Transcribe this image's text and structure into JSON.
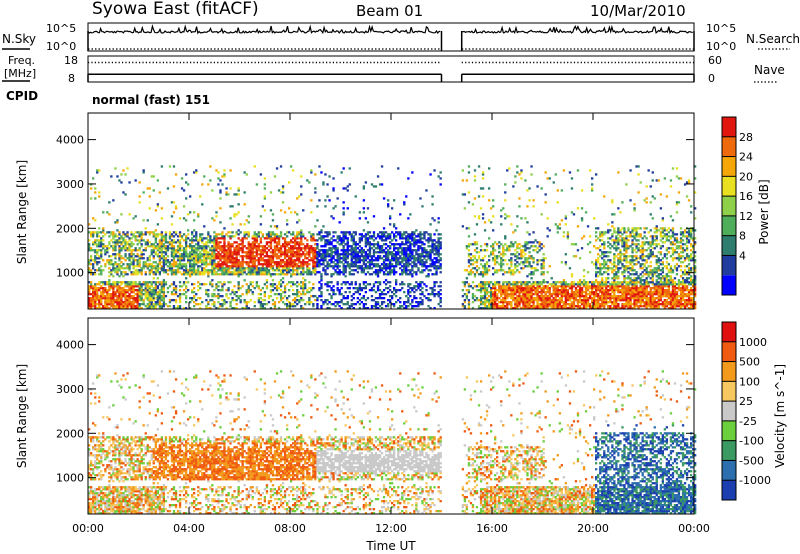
{
  "header": {
    "title": "Syowa East (fitACF)",
    "beam": "Beam 01",
    "date": "10/Mar/2010"
  },
  "left_labels": {
    "nsky": "N.Sky",
    "freq_line1": "Freq.",
    "freq_line2": "[MHz]",
    "cpid": "CPID"
  },
  "right_labels": {
    "nsearch": "N.Search",
    "nave": "Nave"
  },
  "cpid_text": "normal (fast) 151",
  "chart_data": [
    {
      "type": "line",
      "name": "noise",
      "left_ticks": [
        "10^5",
        "10^0"
      ],
      "right_ticks": [
        "10^5",
        "10^0"
      ],
      "series": [
        {
          "name": "N.Sky",
          "style": "solid",
          "segments": [
            [
              0,
              14.0
            ],
            [
              14.8,
              24.0
            ]
          ]
        },
        {
          "name": "N.Search",
          "style": "dotted",
          "segments": [
            [
              0,
              14.0
            ],
            [
              14.8,
              24.0
            ]
          ]
        }
      ]
    },
    {
      "type": "line",
      "name": "frequency",
      "left_ticks": [
        "18",
        "8"
      ],
      "right_ticks": [
        "60",
        "0"
      ],
      "series": [
        {
          "name": "Freq.",
          "style": "solid",
          "value": 11
        },
        {
          "name": "Nave",
          "style": "dotted",
          "value": 45
        }
      ]
    },
    {
      "type": "heatmap",
      "name": "power",
      "ylabel": "Slant Range [km]",
      "yticks": [
        "4000",
        "3000",
        "2000",
        "1000"
      ],
      "ylim": [
        180,
        4600
      ],
      "xlim": [
        0,
        24
      ],
      "colorbar_label": "Power [dB]",
      "colorbar_ticks": [
        "28",
        "24",
        "20",
        "16",
        "12",
        "8",
        "4"
      ],
      "colorbar_colors": [
        "#0000ff",
        "#1f3c9e",
        "#2e7d6e",
        "#4fae5b",
        "#8fd04a",
        "#e8e020",
        "#f5a70a",
        "#ee6a0c",
        "#e0160f"
      ],
      "data_gap": [
        14.0,
        14.8
      ]
    },
    {
      "type": "heatmap",
      "name": "velocity",
      "ylabel": "Slant Range [km]",
      "yticks": [
        "4000",
        "3000",
        "2000",
        "1000"
      ],
      "ylim": [
        180,
        4600
      ],
      "xlim": [
        0,
        24
      ],
      "colorbar_label": "Velocity  [m s^-1]",
      "colorbar_ticks": [
        "1000",
        "500",
        "100",
        "25",
        "-25",
        "-100",
        "-500",
        "-1000"
      ],
      "colorbar_colors": [
        "#1b3fb0",
        "#2d6fae",
        "#3a9a62",
        "#6ccf3e",
        "#c9c9c9",
        "#f7c760",
        "#f39a1c",
        "#ef5a10",
        "#e01010"
      ],
      "data_gap": [
        14.0,
        14.8
      ]
    }
  ],
  "x_axis": {
    "ticks": [
      "00:00",
      "04:00",
      "08:00",
      "12:00",
      "16:00",
      "20:00",
      "00:00"
    ],
    "label": "Time UT"
  }
}
